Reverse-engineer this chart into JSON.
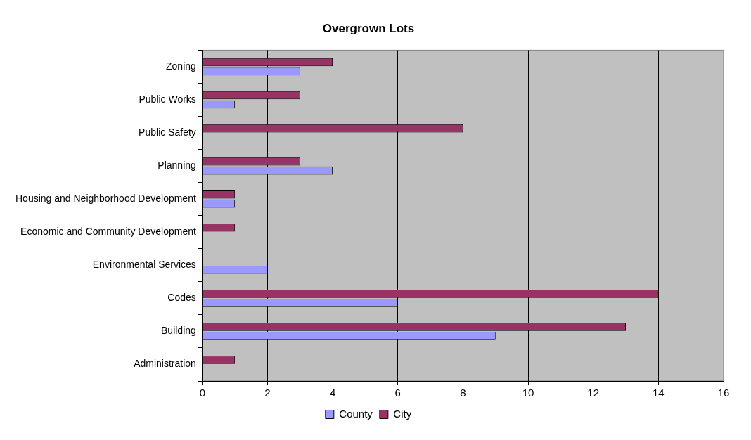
{
  "chart_data": {
    "type": "bar",
    "orientation": "horizontal",
    "title": "Overgrown Lots",
    "categories": [
      "Zoning",
      "Public Works",
      "Public Safety",
      "Planning",
      "Housing and Neighborhood Development",
      "Economic and Community Development",
      "Environmental Services",
      "Codes",
      "Building",
      "Administration"
    ],
    "series": [
      {
        "name": "County",
        "color": "#9999ff",
        "values": [
          3,
          1,
          0,
          4,
          1,
          0,
          2,
          6,
          9,
          0
        ]
      },
      {
        "name": "City",
        "color": "#993366",
        "values": [
          4,
          3,
          8,
          3,
          1,
          1,
          0,
          14,
          13,
          1
        ]
      }
    ],
    "xlim": [
      0,
      16
    ],
    "xticks": [
      0,
      2,
      4,
      6,
      8,
      10,
      12,
      14,
      16
    ],
    "grid": "x",
    "legend": "bottom"
  }
}
